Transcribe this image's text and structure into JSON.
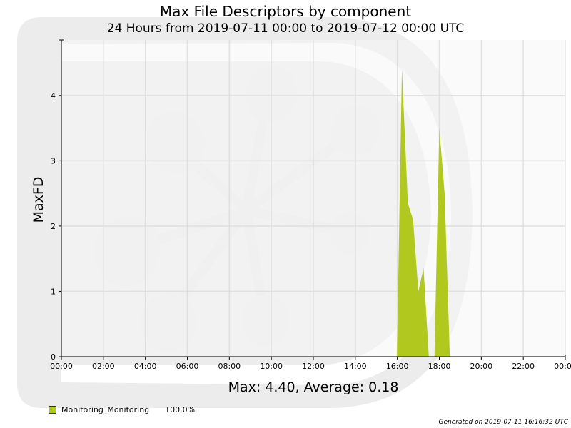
{
  "header": {
    "title": "Max File Descriptors by component",
    "subtitle": "24 Hours from 2019-07-11 00:00 to 2019-07-12 00:00 UTC"
  },
  "summary": {
    "stats": "Max: 4.40, Average: 0.18"
  },
  "legend": {
    "items": [
      {
        "label": "Monitoring_Monitoring",
        "percent": "100.0%",
        "color": "#b1c81e"
      }
    ]
  },
  "footer": {
    "generated": "Generated on 2019-07-11 16:16:32 UTC"
  },
  "chart_data": {
    "type": "area",
    "ylabel": "MaxFD",
    "xlabel": "",
    "xlim": [
      "00:00",
      "24:00"
    ],
    "ylim": [
      0,
      4.85
    ],
    "x_ticks": [
      "00:00",
      "02:00",
      "04:00",
      "06:00",
      "08:00",
      "10:00",
      "12:00",
      "14:00",
      "16:00",
      "18:00",
      "20:00",
      "22:00",
      "00:00"
    ],
    "x_tick_hours": [
      0,
      2,
      4,
      6,
      8,
      10,
      12,
      14,
      16,
      18,
      20,
      22,
      24
    ],
    "y_ticks": [
      0,
      1,
      2,
      3,
      4
    ],
    "grid": true,
    "series": [
      {
        "name": "Monitoring_Monitoring",
        "color": "#b1c81e",
        "x_hours": [
          15.98,
          16.22,
          16.5,
          16.75,
          17.0,
          17.25,
          17.5,
          17.77,
          18.0,
          18.25,
          18.5
        ],
        "y": [
          0,
          4.4,
          2.35,
          2.1,
          1.0,
          1.35,
          0,
          0,
          3.5,
          2.5,
          0
        ]
      }
    ]
  }
}
